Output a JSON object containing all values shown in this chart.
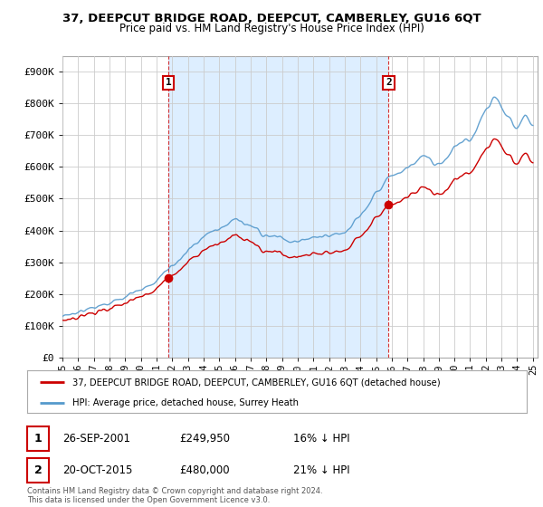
{
  "title": "37, DEEPCUT BRIDGE ROAD, DEEPCUT, CAMBERLEY, GU16 6QT",
  "subtitle": "Price paid vs. HM Land Registry's House Price Index (HPI)",
  "legend_label_red": "37, DEEPCUT BRIDGE ROAD, DEEPCUT, CAMBERLEY, GU16 6QT (detached house)",
  "legend_label_blue": "HPI: Average price, detached house, Surrey Heath",
  "footer": "Contains HM Land Registry data © Crown copyright and database right 2024.\nThis data is licensed under the Open Government Licence v3.0.",
  "ylim": [
    0,
    950000
  ],
  "yticks": [
    0,
    100000,
    200000,
    300000,
    400000,
    500000,
    600000,
    700000,
    800000,
    900000
  ],
  "ytick_labels": [
    "£0",
    "£100K",
    "£200K",
    "£300K",
    "£400K",
    "£500K",
    "£600K",
    "£700K",
    "£800K",
    "£900K"
  ],
  "red_color": "#cc0000",
  "blue_color": "#5599cc",
  "shade_color": "#ddeeff",
  "background_color": "#ffffff",
  "plot_bg_color": "#ffffff",
  "grid_color": "#cccccc",
  "sale1_year": 2001.75,
  "sale1_price": 249950,
  "sale2_year": 2015.8,
  "sale2_price": 480000,
  "xstart": 1995,
  "xend": 2025
}
